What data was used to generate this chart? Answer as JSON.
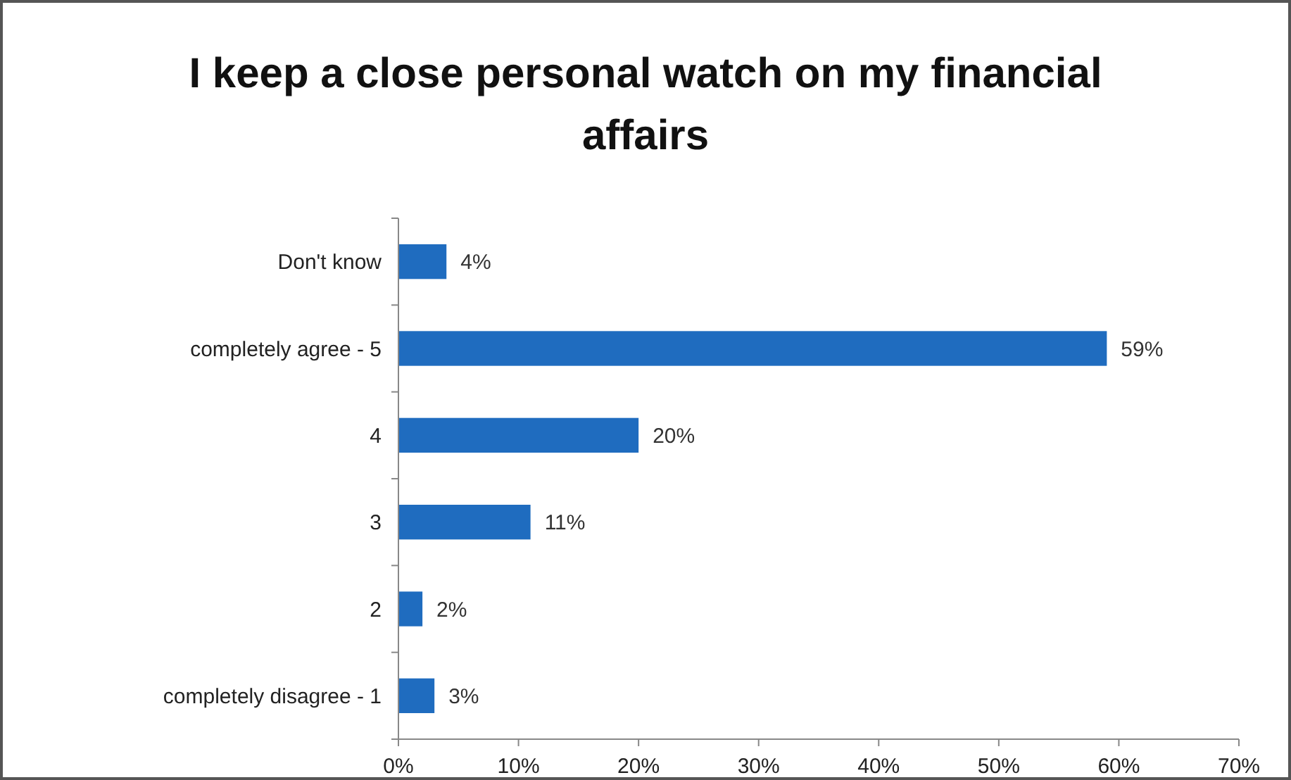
{
  "chart_data": {
    "type": "bar",
    "orientation": "horizontal",
    "title": "I keep a close personal watch on my financial affairs",
    "categories": [
      "Don't know",
      "completely agree - 5",
      "4",
      "3",
      "2",
      "completely disagree - 1"
    ],
    "values": [
      4,
      59,
      20,
      11,
      2,
      3
    ],
    "value_labels": [
      "4%",
      "59%",
      "20%",
      "11%",
      "2%",
      "3%"
    ],
    "color": "#1f6cbf",
    "xlim": [
      0,
      70
    ],
    "xticks": [
      {
        "value": 0,
        "label": "0%"
      },
      {
        "value": 10,
        "label": "10%"
      },
      {
        "value": 20,
        "label": "20%"
      },
      {
        "value": 30,
        "label": "30%"
      },
      {
        "value": 40,
        "label": "40%"
      },
      {
        "value": 50,
        "label": "50%"
      },
      {
        "value": 60,
        "label": "60%"
      },
      {
        "value": 70,
        "label": "70%"
      }
    ],
    "grid": false
  }
}
